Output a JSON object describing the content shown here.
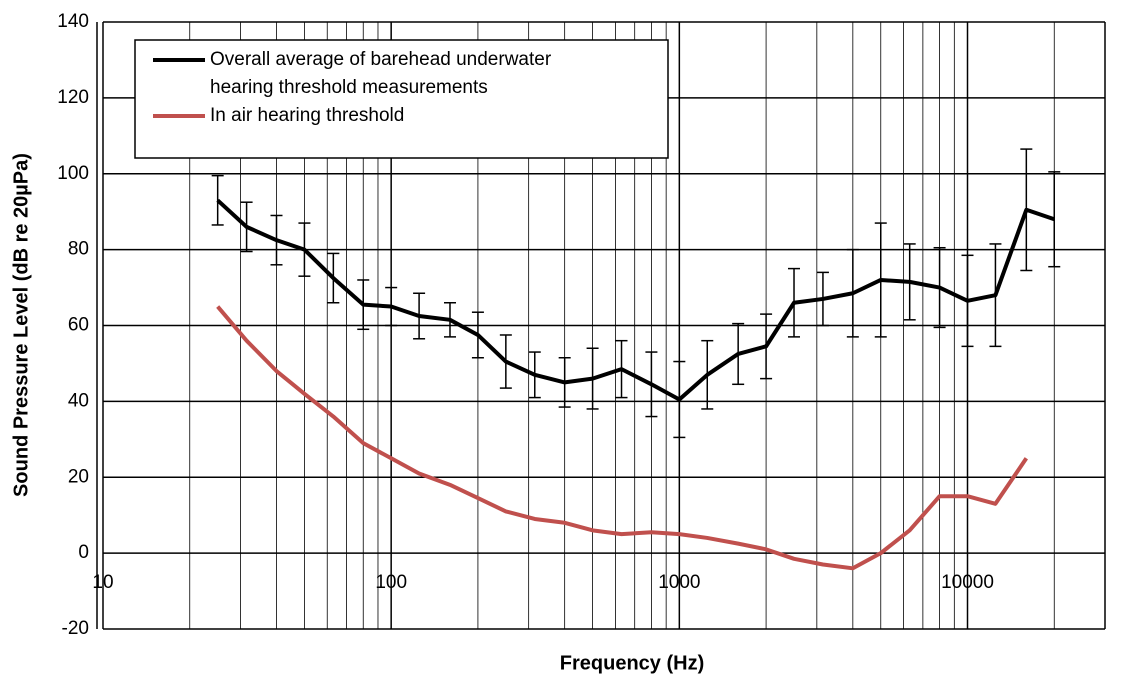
{
  "chart_data": {
    "type": "line",
    "x_label": "Frequency (Hz)",
    "y_label": "Sound Pressure Level (dB re 20µPa)",
    "x_log": true,
    "grid": true,
    "legend": "upper left",
    "xlim": [
      10,
      30000
    ],
    "xticks": [
      10,
      100,
      1000,
      10000
    ],
    "xminor": [
      20,
      30,
      40,
      50,
      60,
      70,
      80,
      90,
      200,
      300,
      400,
      500,
      600,
      700,
      800,
      900,
      2000,
      3000,
      4000,
      5000,
      6000,
      7000,
      8000,
      9000,
      20000
    ],
    "ylim": [
      -20,
      140
    ],
    "yticks": [
      -20,
      0,
      20,
      40,
      60,
      80,
      100,
      120,
      140
    ],
    "series": [
      {
        "name": "Overall average of barehead underwater hearing threshold measurements",
        "color": "#000000",
        "x": [
          25,
          31.5,
          40,
          50,
          63,
          80,
          100,
          125,
          160,
          200,
          250,
          315,
          400,
          500,
          630,
          800,
          1000,
          1250,
          1600,
          2000,
          2500,
          3150,
          4000,
          5000,
          6300,
          8000,
          10000,
          12500,
          16000,
          20000
        ],
        "values": [
          93,
          86,
          82.5,
          80,
          72.5,
          65.5,
          65,
          62.5,
          61.5,
          57.5,
          50.5,
          47,
          45,
          46,
          48.5,
          44.5,
          40.5,
          47,
          52.5,
          54.5,
          66,
          67,
          68.5,
          72,
          71.5,
          70,
          66.5,
          68,
          90.5,
          88
        ],
        "errors": [
          6.5,
          6.5,
          6.5,
          7,
          6.5,
          6.5,
          5,
          6,
          4.5,
          6,
          7,
          6,
          6.5,
          8,
          7.5,
          8.5,
          10,
          9,
          8,
          8.5,
          9,
          7,
          11.5,
          15,
          10,
          10.5,
          12,
          13.5,
          16,
          12.5
        ]
      },
      {
        "name": "In air hearing threshold",
        "color": "#c0504d",
        "x": [
          25,
          31.5,
          40,
          50,
          63,
          80,
          100,
          125,
          160,
          200,
          250,
          315,
          400,
          500,
          630,
          800,
          1000,
          1250,
          1600,
          2000,
          2500,
          3150,
          4000,
          5000,
          6300,
          8000,
          10000,
          12500,
          16000
        ],
        "values": [
          65,
          56,
          48,
          42,
          36,
          29,
          25,
          21,
          18,
          14.5,
          11,
          9,
          8,
          6,
          5,
          5.5,
          5,
          4,
          2.5,
          1,
          -1.5,
          -3,
          -4,
          0,
          6,
          15,
          15,
          13,
          25
        ]
      }
    ]
  }
}
